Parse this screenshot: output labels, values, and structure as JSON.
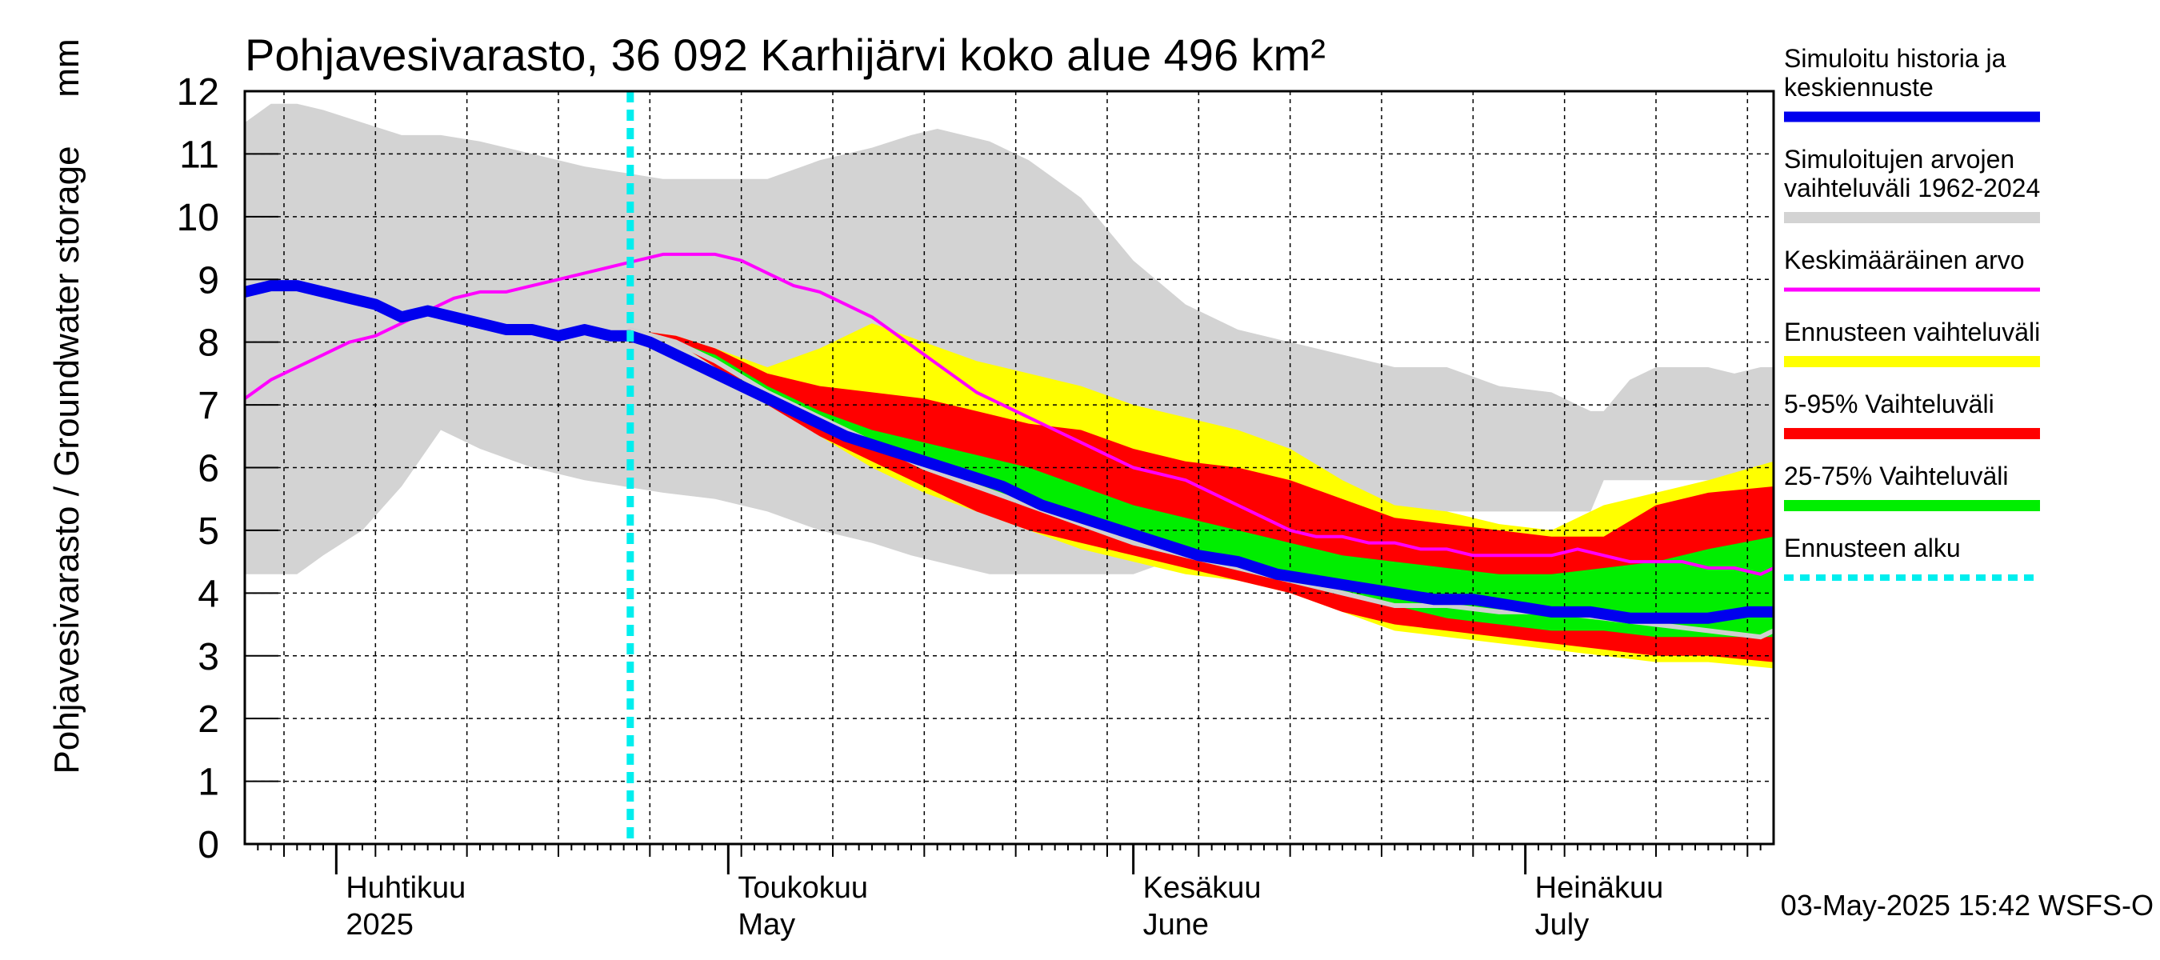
{
  "chart_data": {
    "type": "area",
    "title": "Pohjavesivarasto, 36 092 Karhijärvi koko alue 496 km²",
    "ylabel": "Pohjavesivarasto / Groundwater storage",
    "yunit": "mm",
    "ylim": [
      0,
      12
    ],
    "yticks": [
      "0",
      "1",
      "2",
      "3",
      "4",
      "5",
      "6",
      "7",
      "8",
      "9",
      "10",
      "11",
      "12"
    ],
    "x_domain_days": [
      0,
      117
    ],
    "x_note": "days since 2025-03-25",
    "month_labels": [
      {
        "fi": "Huhtikuu",
        "en": "2025",
        "day": 7
      },
      {
        "fi": "Toukokuu",
        "en": "May",
        "day": 37
      },
      {
        "fi": "Kesäkuu",
        "en": "June",
        "day": 68
      },
      {
        "fi": "Heinäkuu",
        "en": "July",
        "day": 98
      }
    ],
    "month_boundaries_days": [
      7,
      37,
      68,
      98
    ],
    "forecast_start_day": 29.5,
    "timestamp": "03-May-2025 15:42 WSFS-O",
    "legend": [
      {
        "label": "Simuloitu historia ja keskiennuste",
        "lines": [
          "Simuloitu historia ja",
          "keskiennuste"
        ],
        "color": "#0000ee",
        "kind": "line"
      },
      {
        "label": "Simuloitujen arvojen vaihteluväli 1962-2024",
        "lines": [
          "Simuloitujen arvojen",
          "vaihteluväli 1962-2024"
        ],
        "color": "#d3d3d3",
        "kind": "band"
      },
      {
        "label": "Keskimääräinen arvo",
        "lines": [
          "Keskimääräinen arvo"
        ],
        "color": "#ff00ff",
        "kind": "thin"
      },
      {
        "label": "Ennusteen vaihteluväli",
        "lines": [
          "Ennusteen vaihteluväli"
        ],
        "color": "#ffff00",
        "kind": "band"
      },
      {
        "label": "5-95% Vaihteluväli",
        "lines": [
          "5-95% Vaihteluväli"
        ],
        "color": "#ff0000",
        "kind": "band"
      },
      {
        "label": "25-75% Vaihteluväli",
        "lines": [
          "25-75% Vaihteluväli"
        ],
        "color": "#00ee00",
        "kind": "band"
      },
      {
        "label": "Ennusteen alku",
        "lines": [
          "Ennusteen alku"
        ],
        "color": "#00eeee",
        "kind": "dotted"
      }
    ],
    "series": [
      {
        "name": "hist_range",
        "color": "#d3d3d3",
        "x": [
          0,
          2,
          4,
          6,
          9,
          12,
          15,
          18,
          22,
          26,
          29,
          32,
          36,
          40,
          44,
          48,
          51,
          53,
          55,
          57,
          60,
          64,
          68,
          72,
          76,
          80,
          84,
          88,
          92,
          96,
          100,
          103,
          104,
          106,
          108,
          110,
          112,
          114,
          116,
          117
        ],
        "upper": [
          11.5,
          11.8,
          11.8,
          11.7,
          11.5,
          11.3,
          11.3,
          11.2,
          11.0,
          10.8,
          10.7,
          10.6,
          10.6,
          10.6,
          10.9,
          11.1,
          11.3,
          11.4,
          11.3,
          11.2,
          10.9,
          10.3,
          9.3,
          8.6,
          8.2,
          8.0,
          7.8,
          7.6,
          7.6,
          7.3,
          7.2,
          6.9,
          6.9,
          7.4,
          7.6,
          7.6,
          7.6,
          7.5,
          7.6,
          7.6
        ],
        "lower": [
          4.3,
          4.3,
          4.3,
          4.6,
          5.0,
          5.7,
          6.6,
          6.3,
          6.0,
          5.8,
          5.7,
          5.6,
          5.5,
          5.3,
          5.0,
          4.8,
          4.6,
          4.5,
          4.4,
          4.3,
          4.3,
          4.3,
          4.3,
          4.6,
          4.8,
          4.9,
          5.0,
          5.1,
          5.3,
          5.3,
          5.3,
          5.3,
          5.8,
          5.8,
          5.8,
          5.8,
          5.8,
          5.8,
          5.8,
          5.8
        ]
      },
      {
        "name": "forecast_range",
        "color": "#ffff00",
        "x": [
          29.5,
          33,
          36,
          40,
          44,
          48,
          52,
          56,
          60,
          64,
          68,
          72,
          76,
          80,
          84,
          88,
          92,
          96,
          100,
          104,
          108,
          112,
          117
        ],
        "upper": [
          8.2,
          8.1,
          7.9,
          7.6,
          7.9,
          8.3,
          8.0,
          7.7,
          7.5,
          7.3,
          7.0,
          6.8,
          6.6,
          6.3,
          5.8,
          5.4,
          5.3,
          5.1,
          5.0,
          5.4,
          5.6,
          5.8,
          6.1
        ],
        "lower": [
          8.2,
          8.0,
          7.6,
          7.1,
          6.5,
          6.0,
          5.6,
          5.3,
          5.0,
          4.7,
          4.5,
          4.3,
          4.2,
          4.0,
          3.7,
          3.4,
          3.3,
          3.2,
          3.1,
          3.0,
          2.9,
          2.9,
          2.8
        ]
      },
      {
        "name": "p5_95",
        "color": "#ff0000",
        "x": [
          29.5,
          33,
          36,
          40,
          44,
          48,
          52,
          56,
          60,
          64,
          68,
          72,
          76,
          80,
          84,
          88,
          92,
          96,
          100,
          104,
          108,
          112,
          117
        ],
        "upper": [
          8.2,
          8.1,
          7.9,
          7.5,
          7.3,
          7.2,
          7.1,
          6.9,
          6.7,
          6.6,
          6.3,
          6.1,
          6.0,
          5.8,
          5.5,
          5.2,
          5.1,
          5.0,
          4.9,
          4.9,
          5.4,
          5.6,
          5.7
        ],
        "lower": [
          8.2,
          8.0,
          7.6,
          7.0,
          6.5,
          6.1,
          5.7,
          5.3,
          5.0,
          4.8,
          4.6,
          4.4,
          4.2,
          4.0,
          3.7,
          3.5,
          3.4,
          3.3,
          3.2,
          3.1,
          3.0,
          3.0,
          2.9
        ]
      },
      {
        "name": "p25_75",
        "color": "#00ee00",
        "x": [
          29.5,
          33,
          36,
          40,
          44,
          48,
          52,
          56,
          60,
          64,
          68,
          72,
          76,
          80,
          84,
          88,
          92,
          96,
          100,
          104,
          108,
          112,
          117
        ],
        "upper": [
          8.2,
          8.0,
          7.8,
          7.3,
          6.9,
          6.6,
          6.4,
          6.2,
          6.0,
          5.7,
          5.4,
          5.2,
          5.0,
          4.8,
          4.6,
          4.5,
          4.4,
          4.3,
          4.3,
          4.4,
          4.5,
          4.7,
          4.9
        ],
        "lower": [
          8.2,
          8.0,
          7.7,
          7.1,
          6.7,
          6.3,
          6.0,
          5.7,
          5.4,
          5.1,
          4.8,
          4.6,
          4.4,
          4.2,
          4.0,
          3.8,
          3.6,
          3.5,
          3.4,
          3.4,
          3.3,
          3.3,
          3.3
        ]
      },
      {
        "name": "mean",
        "color": "#ff00ff",
        "x": [
          0,
          2,
          4,
          6,
          8,
          10,
          12,
          14,
          16,
          18,
          20,
          22,
          24,
          26,
          28,
          30,
          32,
          34,
          36,
          38,
          40,
          42,
          44,
          46,
          48,
          50,
          52,
          54,
          56,
          58,
          60,
          62,
          64,
          66,
          68,
          70,
          72,
          74,
          76,
          78,
          80,
          82,
          84,
          86,
          88,
          90,
          92,
          94,
          96,
          98,
          100,
          102,
          104,
          106,
          108,
          110,
          112,
          114,
          116,
          117
        ],
        "y": [
          7.1,
          7.4,
          7.6,
          7.8,
          8.0,
          8.1,
          8.3,
          8.5,
          8.7,
          8.8,
          8.8,
          8.9,
          9.0,
          9.1,
          9.2,
          9.3,
          9.4,
          9.4,
          9.4,
          9.3,
          9.1,
          8.9,
          8.8,
          8.6,
          8.4,
          8.1,
          7.8,
          7.5,
          7.2,
          7.0,
          6.8,
          6.6,
          6.4,
          6.2,
          6.0,
          5.9,
          5.8,
          5.6,
          5.4,
          5.2,
          5.0,
          4.9,
          4.9,
          4.8,
          4.8,
          4.7,
          4.7,
          4.6,
          4.6,
          4.6,
          4.6,
          4.7,
          4.6,
          4.5,
          4.5,
          4.5,
          4.4,
          4.4,
          4.3,
          4.4
        ]
      },
      {
        "name": "median_forecast",
        "color": "#cfcfcf",
        "x": [
          29.5,
          33,
          36,
          40,
          44,
          48,
          52,
          56,
          60,
          64,
          68,
          72,
          76,
          80,
          84,
          88,
          92,
          96,
          100,
          104,
          108,
          112,
          116,
          117
        ],
        "y": [
          8.2,
          8.0,
          7.7,
          7.2,
          6.8,
          6.4,
          6.0,
          5.7,
          5.4,
          5.1,
          4.8,
          4.6,
          4.4,
          4.2,
          4.0,
          3.8,
          3.8,
          3.7,
          3.7,
          3.6,
          3.5,
          3.4,
          3.3,
          3.4
        ]
      },
      {
        "name": "sim_history_forecast",
        "color": "#0000ee",
        "x": [
          0,
          2,
          4,
          6,
          8,
          10,
          12,
          14,
          16,
          18,
          20,
          22,
          24,
          26,
          28,
          29.5,
          31,
          33,
          35,
          37,
          40,
          43,
          46,
          49,
          52,
          55,
          58,
          61,
          64,
          67,
          70,
          73,
          76,
          79,
          82,
          85,
          88,
          91,
          94,
          97,
          100,
          103,
          106,
          109,
          112,
          115,
          117
        ],
        "y": [
          8.8,
          8.9,
          8.9,
          8.8,
          8.7,
          8.6,
          8.4,
          8.5,
          8.4,
          8.3,
          8.2,
          8.2,
          8.1,
          8.2,
          8.1,
          8.1,
          8.0,
          7.8,
          7.6,
          7.4,
          7.1,
          6.8,
          6.5,
          6.3,
          6.1,
          5.9,
          5.7,
          5.4,
          5.2,
          5.0,
          4.8,
          4.6,
          4.5,
          4.3,
          4.2,
          4.1,
          4.0,
          3.9,
          3.9,
          3.8,
          3.7,
          3.7,
          3.6,
          3.6,
          3.6,
          3.7,
          3.7
        ]
      }
    ]
  }
}
